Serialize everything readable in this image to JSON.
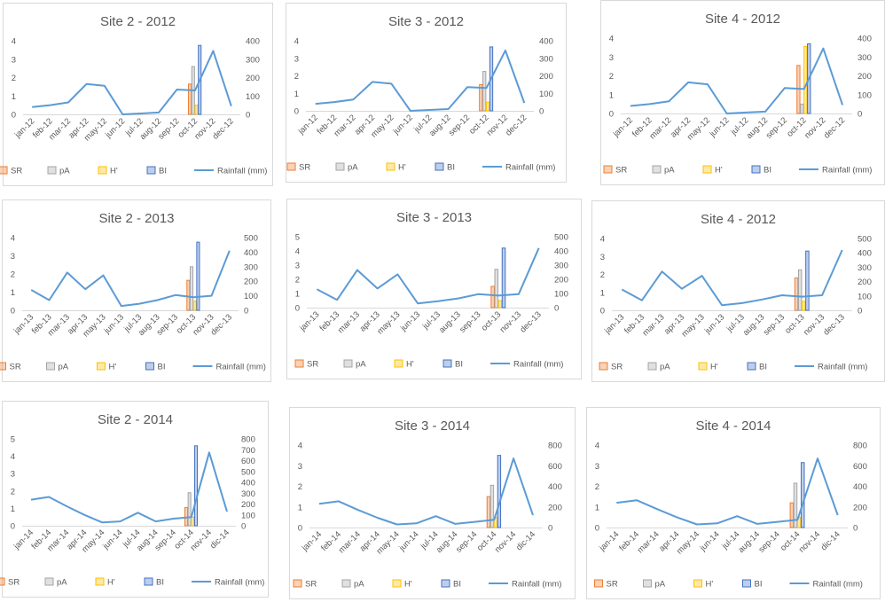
{
  "legend_labels": {
    "SR": "SR",
    "pA": "pA",
    "H": "H'",
    "BI": "BI",
    "rain": "Rainfall (mm)"
  },
  "colors": {
    "SR": "#ed7d31",
    "pA": "#a5a5a5",
    "H": "#ffc000",
    "BI": "#4472c4",
    "rain": "#5b9bd5",
    "axis": "#d9d9d9",
    "text": "#595959"
  },
  "chart_data": [
    {
      "type": "bar+line",
      "title": "Site 2 - 2012",
      "categories": [
        "jan-12",
        "feb-12",
        "mar-12",
        "apr-12",
        "may-12",
        "jun-12",
        "jul-12",
        "aug-12",
        "sep-12",
        "oct-12",
        "nov-12",
        "dec-12"
      ],
      "bar_category": "oct-12",
      "bars": {
        "SR": 1.65,
        "pA": 2.6,
        "H": 0.5,
        "BI": 3.75
      },
      "y_left": {
        "min": 0,
        "max": 4,
        "step": 1
      },
      "y_right": {
        "min": 0,
        "max": 400,
        "step": 100
      },
      "rainfall": [
        40,
        50,
        65,
        165,
        155,
        0,
        5,
        10,
        135,
        130,
        345,
        45
      ]
    },
    {
      "type": "bar+line",
      "title": "Site 3 - 2012",
      "categories": [
        "jan-12",
        "feb-12",
        "mar-12",
        "apr-12",
        "may-12",
        "jun-12",
        "jul-12",
        "aug-12",
        "sep-12",
        "oct-12",
        "nov-12",
        "dec-12"
      ],
      "bar_category": "oct-12",
      "bars": {
        "SR": 1.5,
        "pA": 2.25,
        "H": 0.5,
        "BI": 3.65
      },
      "y_left": {
        "min": 0,
        "max": 4,
        "step": 1
      },
      "y_right": {
        "min": 0,
        "max": 400,
        "step": 100
      },
      "rainfall": [
        40,
        50,
        65,
        165,
        155,
        0,
        5,
        10,
        135,
        130,
        345,
        45
      ]
    },
    {
      "type": "bar+line",
      "title": "Site 4 - 2012",
      "categories": [
        "jan-12",
        "feb-12",
        "mar-12",
        "apr-12",
        "may-12",
        "jun-12",
        "jul-12",
        "aug-12",
        "sep-12",
        "oct-12",
        "nov-12",
        "dec-12"
      ],
      "bar_category": "oct-12",
      "bars": {
        "SR": 2.55,
        "pA": 0.5,
        "H": 3.55,
        "BI": 3.7
      },
      "y_left": {
        "min": 0,
        "max": 4,
        "step": 1
      },
      "y_right": {
        "min": 0,
        "max": 400,
        "step": 100
      },
      "rainfall": [
        40,
        50,
        65,
        165,
        155,
        0,
        5,
        10,
        135,
        130,
        345,
        45
      ]
    },
    {
      "type": "bar+line",
      "title": "Site 2 - 2013",
      "categories": [
        "jan-13",
        "feb-13",
        "mar-13",
        "apr-13",
        "may-13",
        "jun-13",
        "jul-13",
        "aug-13",
        "sep-13",
        "oct-13",
        "nov-13",
        "dec-13"
      ],
      "bar_category": "oct-13",
      "bars": {
        "SR": 1.65,
        "pA": 2.4,
        "H": 0.5,
        "BI": 3.75
      },
      "y_left": {
        "min": 0,
        "max": 4,
        "step": 1
      },
      "y_right": {
        "min": 0,
        "max": 500,
        "step": 100
      },
      "rainfall": [
        140,
        70,
        260,
        145,
        240,
        30,
        45,
        70,
        105,
        90,
        100,
        410
      ]
    },
    {
      "type": "bar+line",
      "title": "Site 3 - 2013",
      "categories": [
        "jan-13",
        "feb-13",
        "mar-13",
        "apr-13",
        "may-13",
        "jun-13",
        "jul-13",
        "aug-13",
        "sep-13",
        "oct-13",
        "nov-13",
        "dec-13"
      ],
      "bar_category": "oct-13",
      "bars": {
        "SR": 1.5,
        "pA": 2.7,
        "H": 0.5,
        "BI": 4.2
      },
      "y_left": {
        "min": 0,
        "max": 5,
        "step": 1
      },
      "y_right": {
        "min": 0,
        "max": 500,
        "step": 100
      },
      "rainfall": [
        130,
        55,
        265,
        135,
        235,
        30,
        45,
        65,
        95,
        85,
        95,
        420
      ]
    },
    {
      "type": "bar+line",
      "title": "Site 4 - 2012",
      "categories": [
        "jan-13",
        "feb-13",
        "mar-13",
        "apr-13",
        "may-13",
        "jun-13",
        "jul-13",
        "aug-13",
        "sep-13",
        "oct-13",
        "nov-13",
        "dec-13"
      ],
      "bar_category": "oct-13",
      "bars": {
        "SR": 1.8,
        "pA": 2.25,
        "H": 0.5,
        "BI": 3.3
      },
      "y_left": {
        "min": 0,
        "max": 4,
        "step": 1
      },
      "y_right": {
        "min": 0,
        "max": 500,
        "step": 100
      },
      "rainfall": [
        145,
        70,
        270,
        150,
        240,
        35,
        50,
        75,
        105,
        95,
        105,
        420
      ]
    },
    {
      "type": "bar+line",
      "title": "Site 2 - 2014",
      "categories": [
        "jan-14",
        "feb-14",
        "mar-14",
        "apr-14",
        "may-14",
        "jun-14",
        "jul-14",
        "aug-14",
        "sep-14",
        "oct-14",
        "nov-14",
        "dic-14"
      ],
      "bar_category": "oct-14",
      "bars": {
        "SR": 1.05,
        "pA": 1.9,
        "H": 0.5,
        "BI": 4.6
      },
      "y_left": {
        "min": 0,
        "max": 5,
        "step": 1
      },
      "y_right": {
        "min": 0,
        "max": 800,
        "step": 100
      },
      "rainfall": [
        240,
        265,
        180,
        100,
        30,
        40,
        120,
        40,
        65,
        80,
        675,
        130
      ]
    },
    {
      "type": "bar+line",
      "title": "Site 3 - 2014",
      "categories": [
        "jan-14",
        "feb-14",
        "mar-14",
        "apr-14",
        "may-14",
        "jun-14",
        "jul-14",
        "aug-14",
        "sep-14",
        "oct-14",
        "nov-14",
        "dic-14"
      ],
      "bar_category": "oct-14",
      "bars": {
        "SR": 1.5,
        "pA": 2.05,
        "H": 0.5,
        "BI": 3.5
      },
      "y_left": {
        "min": 0,
        "max": 4,
        "step": 1
      },
      "y_right": {
        "min": 0,
        "max": 800,
        "step": 200
      },
      "rainfall": [
        230,
        255,
        170,
        95,
        30,
        40,
        110,
        35,
        55,
        75,
        670,
        120
      ]
    },
    {
      "type": "bar+line",
      "title": "Site 4 - 2014",
      "categories": [
        "jan-14",
        "feb-14",
        "mar-14",
        "apr-14",
        "may-14",
        "jun-14",
        "jul-14",
        "aug-14",
        "sep-14",
        "oct-14",
        "nov-14",
        "dic-14"
      ],
      "bar_category": "oct-14",
      "bars": {
        "SR": 1.2,
        "pA": 2.15,
        "H": 0.5,
        "BI": 3.15
      },
      "y_left": {
        "min": 0,
        "max": 4,
        "step": 1
      },
      "y_right": {
        "min": 0,
        "max": 800,
        "step": 200
      },
      "rainfall": [
        240,
        265,
        180,
        100,
        30,
        40,
        110,
        35,
        55,
        75,
        670,
        120
      ]
    }
  ]
}
